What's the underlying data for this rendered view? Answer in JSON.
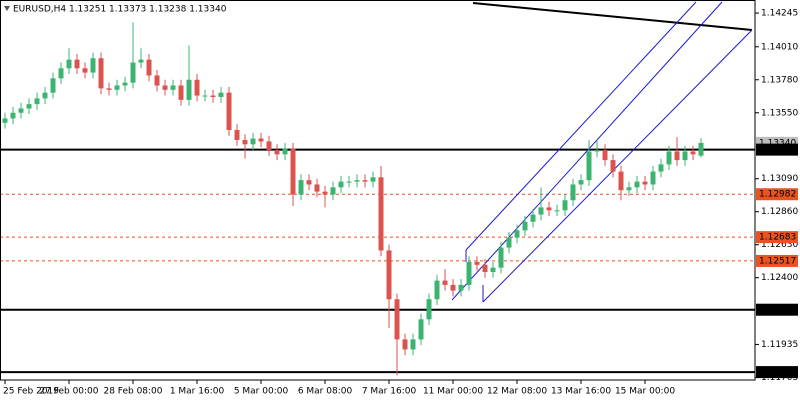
{
  "chart_data": {
    "type": "candlestick",
    "title": "EURUSD,H4  1.13251 1.13373 1.13238 1.13340",
    "categories": [
      "25 Feb 2019",
      null,
      null,
      null,
      null,
      null,
      null,
      null,
      "27 Feb 00:00",
      null,
      null,
      null,
      null,
      null,
      null,
      null,
      "28 Feb 08:00",
      null,
      null,
      null,
      null,
      null,
      null,
      null,
      "1 Mar 16:00",
      null,
      null,
      null,
      null,
      null,
      null,
      null,
      "5 Mar 00:00",
      null,
      null,
      null,
      null,
      null,
      null,
      null,
      "6 Mar 08:00",
      null,
      null,
      null,
      null,
      null,
      null,
      null,
      "7 Mar 16:00",
      null,
      null,
      null,
      null,
      null,
      null,
      null,
      "11 Mar 00:00",
      null,
      null,
      null,
      null,
      null,
      null,
      null,
      "12 Mar 08:00",
      null,
      null,
      null,
      null,
      null,
      null,
      null,
      "13 Mar 16:00",
      null,
      null,
      null,
      null,
      null,
      null,
      null,
      "15 Mar 00:00",
      null,
      null,
      null,
      null,
      null,
      null,
      null
    ],
    "open": [
      1.1348,
      1.1351,
      1.1355,
      1.1358,
      1.1361,
      1.1365,
      1.1369,
      1.1379,
      1.1386,
      1.1392,
      1.1386,
      1.1383,
      1.1393,
      1.1372,
      1.1371,
      1.1374,
      1.1376,
      1.139,
      1.1392,
      1.1381,
      1.1374,
      1.1371,
      1.1374,
      1.1364,
      1.1378,
      1.1367,
      1.1367,
      1.1366,
      1.1369,
      1.1343,
      1.1336,
      1.1333,
      1.1337,
      1.1335,
      1.1329,
      1.1326,
      1.133,
      1.1298,
      1.1308,
      1.1305,
      1.13,
      1.1298,
      1.1303,
      1.1307,
      1.1307,
      1.1308,
      1.1307,
      1.131,
      1.1259,
      1.1225,
      1.1197,
      1.119,
      1.1197,
      1.1211,
      1.1225,
      1.1238,
      1.1235,
      1.1231,
      1.1235,
      1.1251,
      1.1249,
      1.1244,
      1.1247,
      1.1261,
      1.1268,
      1.1273,
      1.1279,
      1.1284,
      1.1289,
      1.1287,
      1.1287,
      1.1294,
      1.1305,
      1.1308,
      1.1328,
      1.1329,
      1.1322,
      1.1314,
      1.1301,
      1.1303,
      1.1307,
      1.1305,
      1.1314,
      1.1319,
      1.1328,
      1.1322,
      1.1328,
      1.13251
    ],
    "high": [
      1.1355,
      1.1359,
      1.1362,
      1.1365,
      1.1369,
      1.1373,
      1.1383,
      1.139,
      1.14,
      1.1396,
      1.139,
      1.1397,
      1.1397,
      1.1376,
      1.1378,
      1.138,
      1.1418,
      1.14,
      1.1396,
      1.1385,
      1.1378,
      1.1378,
      1.1378,
      1.1402,
      1.1382,
      1.1371,
      1.1371,
      1.1373,
      1.1373,
      1.1347,
      1.134,
      1.1341,
      1.1341,
      1.1339,
      1.1333,
      1.1334,
      1.1334,
      1.1312,
      1.1312,
      1.1309,
      1.1304,
      1.1307,
      1.1311,
      1.1311,
      1.1312,
      1.1312,
      1.1314,
      1.1318,
      1.1263,
      1.1229,
      1.1201,
      1.1201,
      1.1215,
      1.1229,
      1.1242,
      1.1246,
      1.1239,
      1.1239,
      1.1255,
      1.1255,
      1.1253,
      1.1251,
      1.1265,
      1.1272,
      1.1277,
      1.1283,
      1.1288,
      1.1303,
      1.1293,
      1.1291,
      1.1298,
      1.1309,
      1.1312,
      1.1336,
      1.1336,
      1.1333,
      1.1326,
      1.1318,
      1.1307,
      1.1311,
      1.1311,
      1.1318,
      1.1323,
      1.1332,
      1.1338,
      1.1332,
      1.1332,
      1.13373
    ],
    "low": [
      1.1344,
      1.1347,
      1.1351,
      1.1354,
      1.1357,
      1.1361,
      1.1365,
      1.1375,
      1.1382,
      1.1382,
      1.1379,
      1.1379,
      1.1368,
      1.1367,
      1.1367,
      1.137,
      1.1372,
      1.1386,
      1.1377,
      1.137,
      1.1367,
      1.1367,
      1.136,
      1.136,
      1.1363,
      1.1363,
      1.1362,
      1.1362,
      1.1339,
      1.1332,
      1.1323,
      1.1329,
      1.1331,
      1.1325,
      1.1322,
      1.1322,
      1.129,
      1.1294,
      1.1301,
      1.1296,
      1.1289,
      1.1294,
      1.1299,
      1.1303,
      1.1303,
      1.1303,
      1.1303,
      1.1255,
      1.1205,
      1.1172,
      1.1186,
      1.1186,
      1.1193,
      1.1207,
      1.1221,
      1.1231,
      1.1227,
      1.1227,
      1.1231,
      1.1245,
      1.124,
      1.124,
      1.1243,
      1.1257,
      1.1264,
      1.1269,
      1.1275,
      1.128,
      1.1283,
      1.1283,
      1.1283,
      1.129,
      1.1301,
      1.1304,
      1.1324,
      1.1318,
      1.131,
      1.1294,
      1.1297,
      1.1299,
      1.1301,
      1.1301,
      1.131,
      1.1315,
      1.1318,
      1.1318,
      1.1322,
      1.13238
    ],
    "close": [
      1.1351,
      1.1355,
      1.1358,
      1.1361,
      1.1365,
      1.1369,
      1.1379,
      1.1386,
      1.1392,
      1.1386,
      1.1383,
      1.1393,
      1.1372,
      1.1371,
      1.1374,
      1.1376,
      1.139,
      1.1392,
      1.1381,
      1.1374,
      1.1371,
      1.1374,
      1.1364,
      1.1378,
      1.1367,
      1.1367,
      1.1366,
      1.1369,
      1.1343,
      1.1336,
      1.1333,
      1.1337,
      1.1335,
      1.1329,
      1.1326,
      1.133,
      1.1298,
      1.1308,
      1.1305,
      1.13,
      1.1298,
      1.1303,
      1.1307,
      1.1307,
      1.1308,
      1.1307,
      1.131,
      1.1259,
      1.1225,
      1.1197,
      1.119,
      1.1197,
      1.1211,
      1.1225,
      1.1238,
      1.1235,
      1.1231,
      1.1235,
      1.1251,
      1.1249,
      1.1244,
      1.1247,
      1.1261,
      1.1268,
      1.1273,
      1.1279,
      1.1284,
      1.1289,
      1.1287,
      1.1287,
      1.1294,
      1.1305,
      1.1308,
      1.1328,
      1.1329,
      1.1322,
      1.1314,
      1.1301,
      1.1303,
      1.1307,
      1.1305,
      1.1314,
      1.1319,
      1.1328,
      1.1322,
      1.1328,
      1.1326,
      1.1334
    ],
    "up_color": "#3cb371",
    "down_color": "#d9534f",
    "ylim": [
      1.11687,
      1.14336
    ],
    "yticks": [
      1.14245,
      {
        "value": 1.1401,
        "label": "1.14010"
      },
      {
        "value": 1.1378,
        "label": "1.13780"
      },
      {
        "value": 1.1355,
        "label": "1.13550"
      },
      {
        "value": 1.1309,
        "label": "1.13090"
      },
      {
        "value": 1.1286,
        "label": "1.12860"
      },
      {
        "value": 1.1263,
        "label": "1.12630"
      },
      {
        "value": 1.124,
        "label": "1.12400"
      },
      1.11935,
      1.11705
    ],
    "current_price": {
      "value": 1.1334,
      "label": "1.13340",
      "color": "#bdbdbd"
    },
    "levels": [
      {
        "value": 1.13293,
        "color": "#000000",
        "dashed": false
      },
      {
        "value": 1.12982,
        "color": "#e8531f",
        "dashed": true
      },
      {
        "value": 1.12683,
        "color": "#e8531f",
        "dashed": true
      },
      {
        "value": 1.12517,
        "color": "#e8531f",
        "dashed": true
      },
      {
        "value": 1.12177,
        "color": "#000000",
        "dashed": false
      },
      {
        "value": 1.11742,
        "color": "#000000",
        "dashed": false
      }
    ]
  }
}
